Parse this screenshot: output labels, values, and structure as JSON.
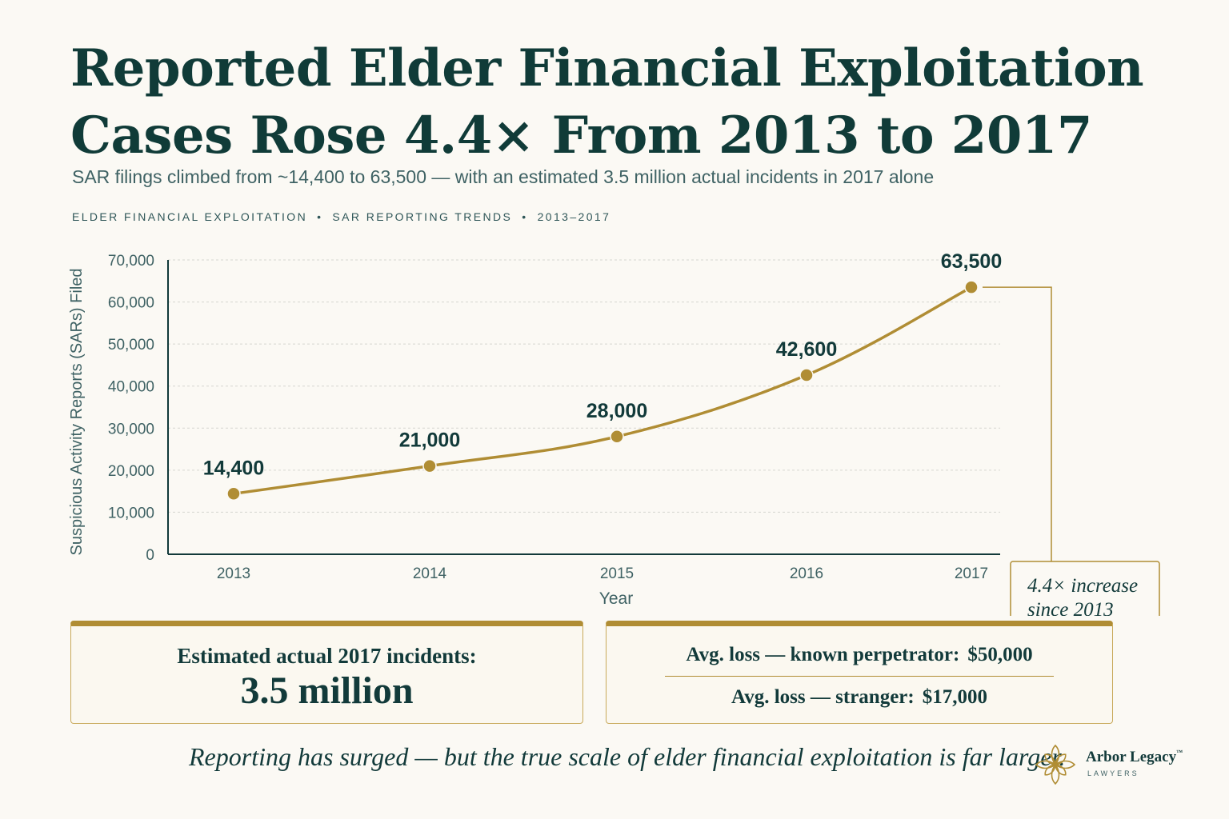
{
  "title_line1": "Reported Elder Financial Exploitation",
  "title_line2": "Cases Rose 4.4× From 2013 to 2017",
  "subtitle": "SAR filings climbed from ~14,400 to 63,500 — with an estimated 3.5 million actual incidents in 2017 alone",
  "kicker": [
    "ELDER FINANCIAL EXPLOITATION",
    "SAR REPORTING TRENDS",
    "2013–2017"
  ],
  "kicker_separator": "•",
  "chart_data": {
    "type": "line",
    "categories": [
      "2013",
      "2014",
      "2015",
      "2016",
      "2017"
    ],
    "series": [
      {
        "values": [
          14400,
          21000,
          28000,
          42600,
          63500
        ],
        "labels": [
          "14,400",
          "21,000",
          "28,000",
          "42,600",
          "63,500"
        ]
      }
    ],
    "xlabel": "Year",
    "ylabel": "Suspicious Activity Reports (SARs) Filed",
    "ylim": [
      0,
      70000
    ],
    "yticks": [
      0,
      10000,
      20000,
      30000,
      40000,
      50000,
      60000,
      70000
    ],
    "ytick_labels": [
      "0",
      "10,000",
      "20,000",
      "30,000",
      "40,000",
      "50,000",
      "60,000",
      "70,000"
    ],
    "grid": true,
    "annotation": {
      "line1": "4.4× increase",
      "line2": "since 2013",
      "target": "2017"
    },
    "colors": {
      "line": "#b08d34",
      "point": "#b08d34",
      "axis": "#123a3a",
      "grid": "#d6d6d0"
    }
  },
  "stats": {
    "incidents_label": "Estimated actual 2017 incidents:",
    "incidents_value": "3.5 million",
    "known_label": "Avg. loss — known perpetrator:",
    "known_value": "$50,000",
    "stranger_label": "Avg. loss — stranger:",
    "stranger_value": "$17,000"
  },
  "footer": "Reporting has surged — but the true scale of elder financial exploitation is far larger.",
  "logo": {
    "name": "Arbor Legacy",
    "tm": "™",
    "sub": "LAWYERS",
    "icon": "flower-icon"
  },
  "colors": {
    "accent": "#b08d34",
    "text": "#123a3a",
    "background": "#fbf9f4"
  }
}
